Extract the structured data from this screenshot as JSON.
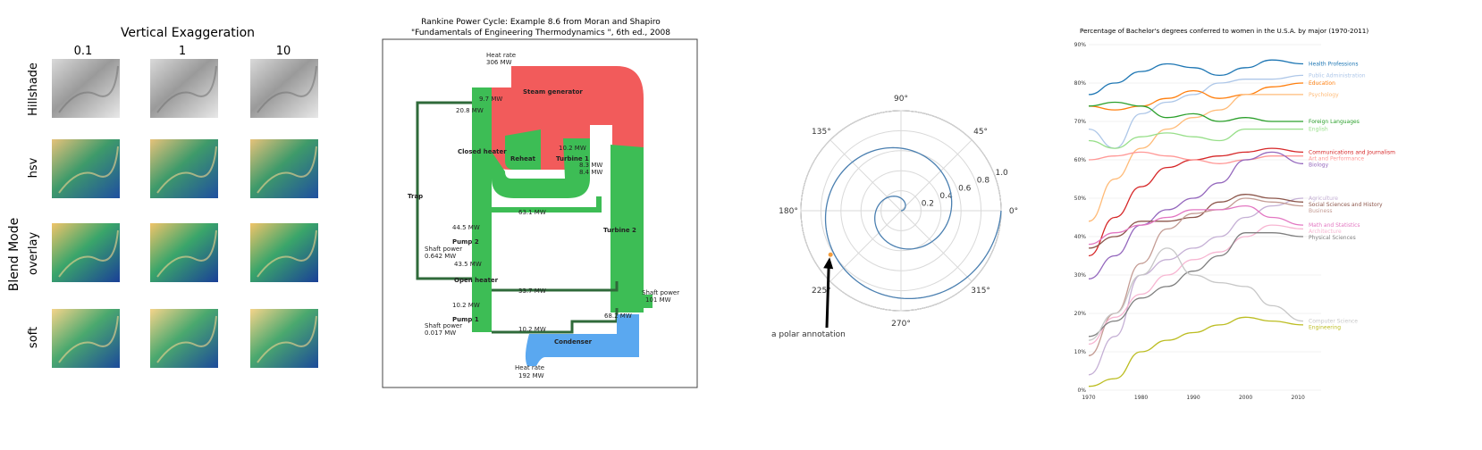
{
  "colors": {
    "red": "#f25b5b",
    "green": "#3dbd55",
    "blue": "#5aa8f0",
    "spiral": "#4a7fb0",
    "grid": "#d9d9d9"
  },
  "chart_data": [
    {
      "type": "other",
      "title": "Vertical Exaggeration",
      "ylabel": "Blend Mode",
      "columns": [
        "0.1",
        "1",
        "10"
      ],
      "rows": [
        "Hillshade",
        "hsv",
        "overlay",
        "soft"
      ]
    },
    {
      "type": "other",
      "title_line1": "Rankine Power Cycle: Example 8.6 from Moran and Shapiro",
      "title_line2": "\"Fundamentals of Engineering Thermodynamics \", 6th ed., 2008",
      "labels": {
        "heat_rate_in": "Heat rate",
        "heat_rate_in_value": "306 MW",
        "steam_generator": "Steam generator",
        "closed_heater": "Closed heater",
        "reheat": "Reheat",
        "turbine1": "Turbine 1",
        "turbine2": "Turbine 2",
        "trap": "Trap",
        "pump2": "Pump 2",
        "pump1": "Pump 1",
        "open_heater": "Open heater",
        "condenser": "Condenser",
        "shaft_power_p2": "Shaft power",
        "shaft_power_p2_value": "0.642 MW",
        "shaft_power_p1": "Shaft power",
        "shaft_power_p1_value": "0.017 MW",
        "shaft_power_out": "Shaft power",
        "shaft_power_out_value": "101 MW",
        "heat_rate_out": "Heat rate",
        "heat_rate_out_value": "192 MW",
        "f_207": "20.8 MW",
        "f_44a": "44.5 MW",
        "f_43": "43.5 MW",
        "f_102": "10.2 MW",
        "f_102b": "10.2 MW",
        "f_633": "63.1 MW",
        "f_337": "33.7 MW",
        "f_97": "9.7 MW",
        "f_102c": "10.2 MW",
        "f_83": "8.3 MW",
        "f_84": "8.4 MW",
        "f_682": "68.2 MW"
      }
    },
    {
      "type": "polar-line",
      "angle_labels": [
        "90°",
        "45°",
        "0°",
        "315°",
        "270°",
        "225°",
        "180°",
        "135°"
      ],
      "r_ticks": [
        0.2,
        0.4,
        0.6,
        0.8,
        1.0
      ],
      "r_tick_labels": [
        "0.2",
        "0.4",
        "0.6",
        "0.8",
        "1.0"
      ],
      "rmax": 1.0,
      "spiral": {
        "r_start": 0.0,
        "r_end": 1.0,
        "theta_turns": 2
      },
      "annotation": {
        "text": "a polar annotation",
        "r": 0.83,
        "theta_deg": 212
      }
    },
    {
      "type": "line",
      "title": "Percentage of Bachelor's degrees conferred to women in the U.S.A. by major (1970-2011)",
      "xlim": [
        1970,
        2011
      ],
      "ylim": [
        0,
        90
      ],
      "x_ticks": [
        1970,
        1980,
        1990,
        2000,
        2010
      ],
      "x_tick_labels": [
        "1970",
        "1980",
        "1990",
        "2000",
        "2010"
      ],
      "y_ticks": [
        0,
        10,
        20,
        30,
        40,
        50,
        60,
        70,
        80,
        90
      ],
      "y_tick_labels": [
        "0%",
        "10%",
        "20%",
        "30%",
        "40%",
        "50%",
        "60%",
        "70%",
        "80%",
        "90%"
      ],
      "x": [
        1970,
        1975,
        1980,
        1985,
        1990,
        1995,
        2000,
        2005,
        2011
      ],
      "series": [
        {
          "name": "Health Professions",
          "color": "#1f77b4",
          "values": [
            77,
            80,
            83,
            85,
            84,
            82,
            84,
            86,
            85
          ]
        },
        {
          "name": "Public Administration",
          "color": "#aec7e8",
          "values": [
            68,
            63,
            72,
            75,
            77,
            80,
            81,
            81,
            82
          ]
        },
        {
          "name": "Education",
          "color": "#ff7f0e",
          "values": [
            74,
            73,
            74,
            76,
            78,
            76,
            77,
            79,
            80
          ]
        },
        {
          "name": "Psychology",
          "color": "#ffbb78",
          "values": [
            44,
            55,
            63,
            68,
            71,
            73,
            77,
            77,
            77
          ]
        },
        {
          "name": "Foreign Languages",
          "color": "#2ca02c",
          "values": [
            74,
            75,
            74,
            71,
            72,
            70,
            71,
            70,
            70
          ]
        },
        {
          "name": "English",
          "color": "#98df8a",
          "values": [
            65,
            63,
            66,
            67,
            66,
            65,
            68,
            68,
            68
          ]
        },
        {
          "name": "Communications and Journalism",
          "color": "#d62728",
          "values": [
            35,
            45,
            53,
            58,
            60,
            61,
            62,
            63,
            62
          ]
        },
        {
          "name": "Art and Performance",
          "color": "#ff9896",
          "values": [
            60,
            61,
            62,
            61,
            60,
            59,
            60,
            61,
            61
          ]
        },
        {
          "name": "Biology",
          "color": "#9467bd",
          "values": [
            29,
            35,
            43,
            47,
            50,
            54,
            60,
            62,
            59
          ]
        },
        {
          "name": "Agriculture",
          "color": "#c5b0d5",
          "values": [
            4,
            14,
            30,
            34,
            37,
            40,
            45,
            48,
            50
          ]
        },
        {
          "name": "Social Sciences and History",
          "color": "#8c564b",
          "values": [
            37,
            40,
            44,
            44,
            45,
            49,
            51,
            50,
            49
          ]
        },
        {
          "name": "Business",
          "color": "#c49c94",
          "values": [
            9,
            20,
            33,
            42,
            46,
            47,
            50,
            49,
            48
          ]
        },
        {
          "name": "Math and Statistics",
          "color": "#e377c2",
          "values": [
            38,
            41,
            43,
            45,
            47,
            47,
            48,
            45,
            43
          ]
        },
        {
          "name": "Architecture",
          "color": "#f7b6d2",
          "values": [
            12,
            19,
            25,
            30,
            34,
            36,
            40,
            43,
            42
          ]
        },
        {
          "name": "Physical Sciences",
          "color": "#7f7f7f",
          "values": [
            14,
            18,
            24,
            27,
            31,
            35,
            41,
            41,
            40
          ]
        },
        {
          "name": "Computer Science",
          "color": "#c7c7c7",
          "values": [
            13,
            20,
            30,
            37,
            30,
            28,
            27,
            22,
            18
          ]
        },
        {
          "name": "Engineering",
          "color": "#bcbd22",
          "values": [
            1,
            3,
            10,
            13,
            15,
            17,
            19,
            18,
            17
          ]
        }
      ]
    }
  ]
}
